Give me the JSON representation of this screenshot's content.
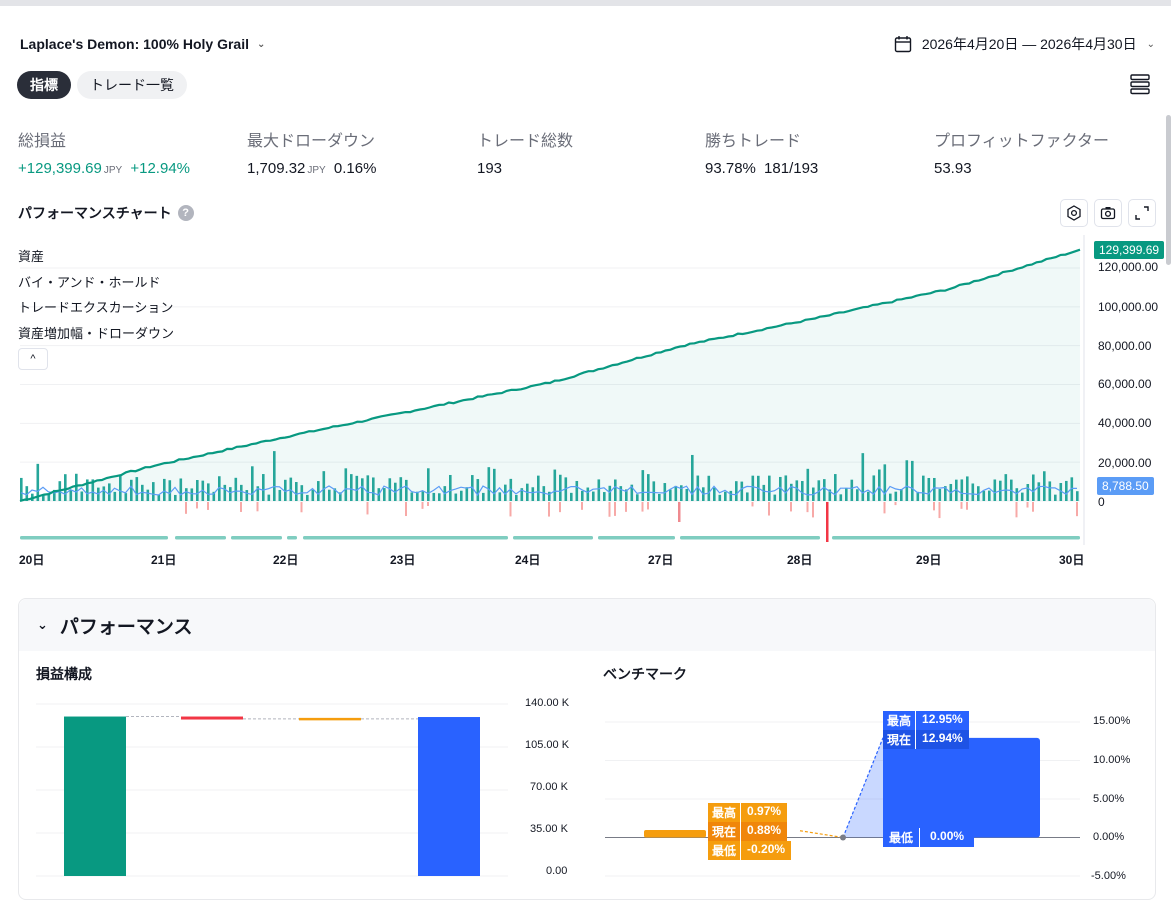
{
  "header": {
    "strategy_name": "Laplace's Demon: 100% Holy Grail",
    "date_range": "2026年4月20日 — 2026年4月30日"
  },
  "tabs": [
    {
      "label": "指標",
      "active": true
    },
    {
      "label": "トレード一覧",
      "active": false
    }
  ],
  "kpis": {
    "total_pnl": {
      "label": "総損益",
      "value": "+129,399.69",
      "unit": "JPY",
      "pct": "+12.94%"
    },
    "max_drawdown": {
      "label": "最大ドローダウン",
      "value": "1,709.32",
      "unit": "JPY",
      "pct": "0.16%"
    },
    "total_trades": {
      "label": "トレード総数",
      "value": "193"
    },
    "winning_trades": {
      "label": "勝ちトレード",
      "value": "93.78%",
      "ratio": "181/193"
    },
    "profit_factor": {
      "label": "プロフィットファクター",
      "value": "53.93"
    }
  },
  "performance_chart": {
    "title": "パフォーマンスチャート",
    "help_icon": "?",
    "legend": [
      "資産",
      "バイ・アンド・ホールド",
      "トレードエクスカーション",
      "資産増加幅・ドローダウン"
    ],
    "collapse_icon": "^",
    "y_ticks": [
      "120,000.00",
      "100,000.00",
      "80,000.00",
      "60,000.00",
      "40,000.00",
      "20,000.00",
      "0"
    ],
    "x_ticks": [
      "20日",
      "21日",
      "22日",
      "23日",
      "24日",
      "27日",
      "28日",
      "29日",
      "30日"
    ],
    "last_equity_tag": "129,399.69",
    "last_excursion_tag": "8,788.50",
    "colors": {
      "equity": "#089981",
      "excursion_pos": "#26a69a",
      "excursion_neg": "#f7a9a7",
      "runup": "#5b9cf6"
    }
  },
  "chart_data": [
    {
      "type": "area",
      "title": "パフォーマンスチャート",
      "series": [
        {
          "name": "資産",
          "x": [
            "20日",
            "21日",
            "22日",
            "23日",
            "24日",
            "27日",
            "28日",
            "29日",
            "30日"
          ],
          "values": [
            0,
            18000,
            33000,
            47000,
            61000,
            80000,
            94000,
            109000,
            129399.69
          ]
        }
      ],
      "ylim": [
        -5000,
        135000
      ],
      "grid": true
    },
    {
      "type": "bar",
      "title": "損益構成",
      "categories": [
        "",
        "",
        "",
        ""
      ],
      "values": [
        129800,
        -1900,
        700,
        129399.69
      ],
      "ylim": [
        0,
        140000
      ],
      "y_ticks": [
        "140.00 K",
        "105.00 K",
        "70.00 K",
        "35.00 K",
        "0.00"
      ]
    },
    {
      "type": "bar",
      "title": "ベンチマーク",
      "y_ticks": [
        "15.00%",
        "10.00%",
        "5.00%",
        "0.00%",
        "-5.00%"
      ],
      "ylim": [
        -5,
        15
      ]
    }
  ],
  "performance_section": {
    "title": "パフォーマンス",
    "pnl_composition_title": "損益構成",
    "benchmark_title": "ベンチマーク",
    "benchmark": {
      "buy_hold": {
        "high_label": "最高",
        "high": "0.97%",
        "current_label": "現在",
        "current": "0.88%",
        "low_label": "最低",
        "low": "-0.20%"
      },
      "strategy": {
        "high_label": "最高",
        "high": "12.95%",
        "current_label": "現在",
        "current": "12.94%",
        "low_label": "最低",
        "low": "0.00%"
      }
    }
  }
}
